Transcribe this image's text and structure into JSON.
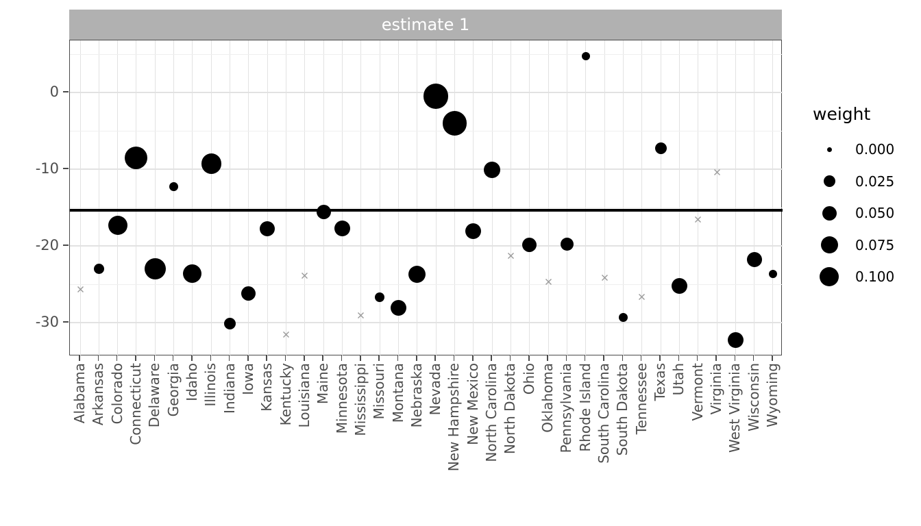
{
  "strip": {
    "label": "estimate 1"
  },
  "legend": {
    "title": "weight",
    "entries": [
      {
        "label": "0.000",
        "d": 7
      },
      {
        "label": "0.025",
        "d": 17
      },
      {
        "label": "0.050",
        "d": 21
      },
      {
        "label": "0.075",
        "d": 25
      },
      {
        "label": "0.100",
        "d": 28
      }
    ]
  },
  "colors": {
    "strip_bg": "#b1b1b1",
    "strip_text": "#ffffff",
    "grid_major": "#e2e2e2",
    "grid_minor": "#efefef",
    "panel_border": "#4a4a4a",
    "axis_text": "#4d4d4d",
    "point": "#000000",
    "zero_weight_cross": "#999999",
    "reference_line": "#000000"
  },
  "chart_data": {
    "type": "scatter",
    "title": "estimate 1",
    "xlabel": "",
    "ylabel": "",
    "legend_title": "weight",
    "legend_position": "right",
    "grid": true,
    "yticks": [
      0,
      -10,
      -20,
      -30
    ],
    "yticks_minor": [
      5,
      -5,
      -15,
      -25
    ],
    "ylim": [
      -34.5,
      6.8
    ],
    "reference_line_y": -15.4,
    "size_legend_breaks": [
      0.0,
      0.025,
      0.05,
      0.075,
      0.1
    ],
    "categories": [
      "Alabama",
      "Arkansas",
      "Colorado",
      "Connecticut",
      "Delaware",
      "Georgia",
      "Idaho",
      "Illinois",
      "Indiana",
      "Iowa",
      "Kansas",
      "Kentucky",
      "Louisiana",
      "Maine",
      "Minnesota",
      "Mississippi",
      "Missouri",
      "Montana",
      "Nebraska",
      "Nevada",
      "New Hampshire",
      "New Mexico",
      "North Carolina",
      "North Dakota",
      "Ohio",
      "Oklahoma",
      "Pennsylvania",
      "Rhode Island",
      "South Carolina",
      "South Dakota",
      "Tennessee",
      "Texas",
      "Utah",
      "Vermont",
      "Virginia",
      "West Virginia",
      "Wisconsin",
      "Wyoming"
    ],
    "points": [
      {
        "state": "Alabama",
        "value": -25.3,
        "weight": 0.0,
        "marker": "cross",
        "d": 11
      },
      {
        "state": "Arkansas",
        "value": -23.0,
        "weight": 0.028,
        "marker": "circle",
        "d": 15
      },
      {
        "state": "Colorado",
        "value": -17.3,
        "weight": 0.1,
        "marker": "circle",
        "d": 28
      },
      {
        "state": "Connecticut",
        "value": -8.5,
        "weight": 0.14,
        "marker": "circle",
        "d": 33
      },
      {
        "state": "Delaware",
        "value": -23.0,
        "weight": 0.12,
        "marker": "circle",
        "d": 31
      },
      {
        "state": "Georgia",
        "value": -12.3,
        "weight": 0.022,
        "marker": "circle",
        "d": 13
      },
      {
        "state": "Idaho",
        "value": -23.6,
        "weight": 0.091,
        "marker": "circle",
        "d": 27
      },
      {
        "state": "Illinois",
        "value": -9.3,
        "weight": 0.11,
        "marker": "circle",
        "d": 29.5
      },
      {
        "state": "Indiana",
        "value": -30.1,
        "weight": 0.037,
        "marker": "circle",
        "d": 17
      },
      {
        "state": "Iowa",
        "value": -26.2,
        "weight": 0.056,
        "marker": "circle",
        "d": 21
      },
      {
        "state": "Kansas",
        "value": -17.8,
        "weight": 0.062,
        "marker": "circle",
        "d": 22
      },
      {
        "state": "Kentucky",
        "value": -31.2,
        "weight": 0.0,
        "marker": "cross",
        "d": 11
      },
      {
        "state": "Louisiana",
        "value": -23.5,
        "weight": 0.0,
        "marker": "cross",
        "d": 11
      },
      {
        "state": "Maine",
        "value": -15.6,
        "weight": 0.056,
        "marker": "circle",
        "d": 21
      },
      {
        "state": "Minnesota",
        "value": -17.7,
        "weight": 0.067,
        "marker": "circle",
        "d": 23
      },
      {
        "state": "Mississippi",
        "value": -28.7,
        "weight": 0.0,
        "marker": "cross",
        "d": 11
      },
      {
        "state": "Missouri",
        "value": -26.7,
        "weight": 0.025,
        "marker": "circle",
        "d": 14
      },
      {
        "state": "Montana",
        "value": -28.1,
        "weight": 0.067,
        "marker": "circle",
        "d": 23
      },
      {
        "state": "Nebraska",
        "value": -23.7,
        "weight": 0.08,
        "marker": "circle",
        "d": 25
      },
      {
        "state": "Nevada",
        "value": -0.5,
        "weight": 0.17,
        "marker": "circle",
        "d": 36.5
      },
      {
        "state": "New Hampshire",
        "value": -4.0,
        "weight": 0.16,
        "marker": "circle",
        "d": 35.5
      },
      {
        "state": "New Mexico",
        "value": -18.1,
        "weight": 0.067,
        "marker": "circle",
        "d": 23
      },
      {
        "state": "North Carolina",
        "value": -10.1,
        "weight": 0.073,
        "marker": "circle",
        "d": 24
      },
      {
        "state": "North Dakota",
        "value": -20.9,
        "weight": 0.0,
        "marker": "cross",
        "d": 11
      },
      {
        "state": "Ohio",
        "value": -19.9,
        "weight": 0.056,
        "marker": "circle",
        "d": 21
      },
      {
        "state": "Oklahoma",
        "value": -24.3,
        "weight": 0.0,
        "marker": "cross",
        "d": 11
      },
      {
        "state": "Pennsylvania",
        "value": -19.8,
        "weight": 0.046,
        "marker": "circle",
        "d": 19
      },
      {
        "state": "Rhode Island",
        "value": 4.7,
        "weight": 0.018,
        "marker": "circle",
        "d": 12
      },
      {
        "state": "South Carolina",
        "value": -23.8,
        "weight": 0.0,
        "marker": "cross",
        "d": 11
      },
      {
        "state": "South Dakota",
        "value": -29.3,
        "weight": 0.022,
        "marker": "circle",
        "d": 13
      },
      {
        "state": "Tennessee",
        "value": -26.3,
        "weight": 0.0,
        "marker": "cross",
        "d": 11
      },
      {
        "state": "Texas",
        "value": -7.3,
        "weight": 0.037,
        "marker": "circle",
        "d": 17
      },
      {
        "state": "Utah",
        "value": -25.2,
        "weight": 0.067,
        "marker": "circle",
        "d": 23
      },
      {
        "state": "Vermont",
        "value": -16.2,
        "weight": 0.0,
        "marker": "cross",
        "d": 11
      },
      {
        "state": "Virginia",
        "value": -10.0,
        "weight": 0.0,
        "marker": "cross",
        "d": 11
      },
      {
        "state": "West Virginia",
        "value": -32.3,
        "weight": 0.067,
        "marker": "circle",
        "d": 23
      },
      {
        "state": "Wisconsin",
        "value": -21.8,
        "weight": 0.062,
        "marker": "circle",
        "d": 22
      },
      {
        "state": "Wyoming",
        "value": -23.7,
        "weight": 0.018,
        "marker": "circle",
        "d": 12
      }
    ]
  }
}
